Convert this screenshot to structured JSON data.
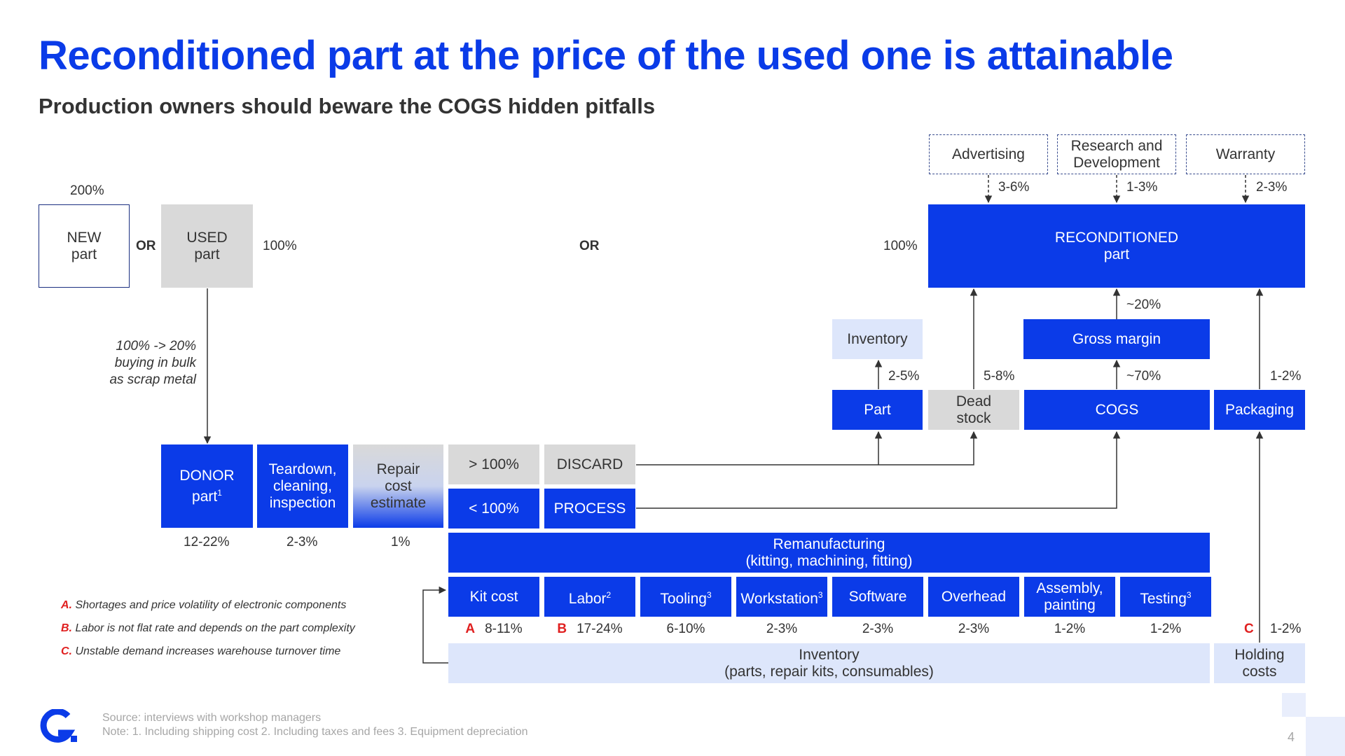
{
  "title": "Reconditioned part at the price of the used one is attainable",
  "subtitle": "Production owners should beware the COGS hidden pitfalls",
  "top_boxes": {
    "advertising": "Advertising",
    "research": "Research and\nDevelopment",
    "warranty": "Warranty",
    "advertising_pct": "3-6%",
    "research_pct": "1-3%",
    "warranty_pct": "2-3%"
  },
  "left": {
    "new_pct": "200%",
    "new_part": "NEW\npart",
    "or1": "OR",
    "used_part": "USED\npart",
    "used_pct": "100%",
    "or2": "OR",
    "scrap_note": "100% -> 20%\nbuying in bulk\nas scrap metal"
  },
  "reconditioned": {
    "pct": "100%",
    "label": "RECONDITIONED\npart",
    "margin_pct": "~20%",
    "gross_margin": "Gross margin",
    "cogs_pct": "~70%",
    "cogs": "COGS",
    "packaging": "Packaging",
    "packaging_pct": "1-2%"
  },
  "inventory_top": {
    "label": "Inventory",
    "part": "Part",
    "part_pct": "2-5%",
    "dead_stock": "Dead\nstock",
    "dead_pct": "5-8%"
  },
  "process": {
    "donor": "DONOR\npart",
    "donor_sup": "1",
    "donor_pct": "12-22%",
    "teardown": "Teardown,\ncleaning,\ninspection",
    "teardown_pct": "2-3%",
    "repair": "Repair\ncost\nestimate",
    "repair_pct": "1%",
    "gt": "> 100%",
    "discard": "DISCARD",
    "lt": "< 100%",
    "proc": "PROCESS"
  },
  "remanufacturing": {
    "label": "Remanufacturing\n(kitting, machining, fitting)",
    "items": [
      {
        "label": "Kit cost",
        "sup": "",
        "pct": "8-11%",
        "flag": "A"
      },
      {
        "label": "Labor",
        "sup": "2",
        "pct": "17-24%",
        "flag": "B"
      },
      {
        "label": "Tooling",
        "sup": "3",
        "pct": "6-10%",
        "flag": ""
      },
      {
        "label": "Workstation",
        "sup": "3",
        "pct": "2-3%",
        "flag": ""
      },
      {
        "label": "Software",
        "sup": "",
        "pct": "2-3%",
        "flag": ""
      },
      {
        "label": "Overhead",
        "sup": "",
        "pct": "2-3%",
        "flag": ""
      },
      {
        "label": "Assembly,\npainting",
        "sup": "",
        "pct": "1-2%",
        "flag": ""
      },
      {
        "label": "Testing",
        "sup": "3",
        "pct": "1-2%",
        "flag": ""
      }
    ],
    "holding_flag": "C",
    "holding_pct": "1-2%",
    "holding": "Holding\ncosts",
    "inventory_bottom": "Inventory\n(parts, repair kits, consumables)"
  },
  "notes": [
    {
      "letter": "A.",
      "text": " Shortages and price volatility of electronic components"
    },
    {
      "letter": "B.",
      "text": " Labor is not flat rate and depends on the part complexity"
    },
    {
      "letter": "C.",
      "text": " Unstable demand increases warehouse turnover time"
    }
  ],
  "footer": {
    "source": "Source: interviews with workshop managers",
    "note": "Note: 1. Including shipping cost 2. Including taxes and fees 3. Equipment depreciation",
    "page": "4"
  },
  "colors": {
    "accent": "#0b3be8",
    "grey": "#d9d9d9",
    "light": "#dde6fb",
    "flag": "#e02020"
  }
}
